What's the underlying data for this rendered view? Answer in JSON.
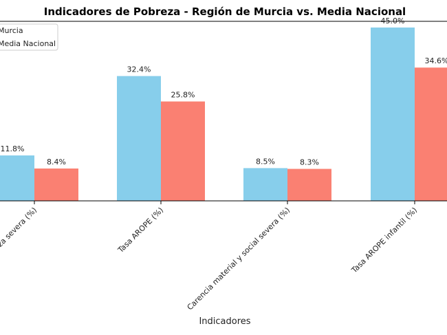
{
  "chart_data": {
    "type": "bar",
    "title": "Indicadores de Pobreza - Región de Murcia vs. Media Nacional",
    "xlabel": "Indicadores",
    "ylabel": "",
    "categories": [
      "Tasa de pobreza severa (%)",
      "Tasa AROPE (%)",
      "Carencia material y social severa (%)",
      "Tasa AROPE infantil (%)"
    ],
    "series": [
      {
        "name": "Murcia",
        "values": [
          11.8,
          32.4,
          8.5,
          45.0
        ],
        "labels": [
          "11.8%",
          "32.4%",
          "8.5%",
          "45.0%"
        ]
      },
      {
        "name": "Media Nacional",
        "values": [
          8.4,
          25.8,
          8.3,
          34.6
        ],
        "labels": [
          "8.4%",
          "25.8%",
          "8.3%",
          "34.6%"
        ]
      }
    ],
    "colors": [
      "#87CEEB",
      "#FA8072"
    ],
    "ylim": [
      0,
      50
    ],
    "legend_position": "top-left",
    "grid": false
  }
}
